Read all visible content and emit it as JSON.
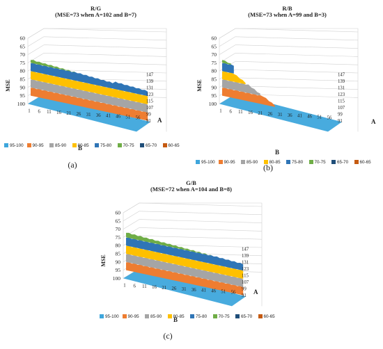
{
  "panels": [
    {
      "title_line1": "R/G",
      "title_line2": "(MSE=73 when A=102 and B=7)",
      "caption": "(a)",
      "profile": "rg",
      "variant": 0
    },
    {
      "title_line1": "R/B",
      "title_line2": "(MSE=73 when A=99 and B=3)",
      "caption": "(b)",
      "profile": "rb",
      "variant": 1
    },
    {
      "title_line1": "G/B",
      "title_line2": "(MSE=72 when A=104 and B=8)",
      "caption": "(c)",
      "profile": "gb",
      "variant": 2
    }
  ],
  "legend": [
    {
      "label": "95-100",
      "color": "#3ea6dc"
    },
    {
      "label": "90-95",
      "color": "#ee7d31"
    },
    {
      "label": "85-90",
      "color": "#a5a5a5"
    },
    {
      "label": "80-85",
      "color": "#fec000"
    },
    {
      "label": "75-80",
      "color": "#2f75b6"
    },
    {
      "label": "70-75",
      "color": "#6fad46"
    },
    {
      "label": "65-70",
      "color": "#1f4e79"
    },
    {
      "label": "60-65",
      "color": "#c55a11"
    }
  ],
  "chart_data": [
    {
      "type": "surface",
      "title": "R/G",
      "subtitle": "(MSE=73 when A=102 and B=7)",
      "zlabel": "MSE",
      "xlabel": "B",
      "ylabel": "A",
      "z_ticks": [
        60,
        65,
        70,
        75,
        80,
        85,
        90,
        95,
        100
      ],
      "z_axis_inverted": true,
      "b_ticks": [
        1,
        6,
        11,
        16,
        21,
        26,
        31,
        36,
        41,
        46,
        51,
        56
      ],
      "a_ticks": [
        91,
        99,
        107,
        115,
        123,
        131,
        139,
        147
      ],
      "minimum": {
        "MSE": 73,
        "A": 102,
        "B": 7
      },
      "bands": [
        "95-100",
        "90-95",
        "85-90",
        "80-85",
        "75-80",
        "70-75",
        "65-70",
        "60-65"
      ]
    },
    {
      "type": "surface",
      "title": "R/B",
      "subtitle": "(MSE=73 when A=99 and B=3)",
      "zlabel": "MSE",
      "xlabel": "B",
      "ylabel": "A",
      "z_ticks": [
        60,
        65,
        70,
        75,
        80,
        85,
        90,
        95,
        100
      ],
      "z_axis_inverted": true,
      "b_ticks": [
        1,
        6,
        11,
        16,
        21,
        26,
        31,
        36,
        41,
        46,
        51,
        56
      ],
      "a_ticks": [
        91,
        99,
        107,
        115,
        123,
        131,
        139,
        147
      ],
      "minimum": {
        "MSE": 73,
        "A": 99,
        "B": 3
      },
      "bands": [
        "95-100",
        "90-95",
        "85-90",
        "80-85",
        "75-80",
        "70-75",
        "65-70",
        "60-65"
      ]
    },
    {
      "type": "surface",
      "title": "G/B",
      "subtitle": "(MSE=72 when A=104 and B=8)",
      "zlabel": "MSE",
      "xlabel": "B",
      "ylabel": "A",
      "z_ticks": [
        60,
        65,
        70,
        75,
        80,
        85,
        90,
        95,
        100
      ],
      "z_axis_inverted": true,
      "b_ticks": [
        1,
        6,
        11,
        16,
        21,
        26,
        31,
        36,
        41,
        46,
        51,
        56
      ],
      "a_ticks": [
        91,
        99,
        107,
        115,
        123,
        131,
        139,
        147
      ],
      "minimum": {
        "MSE": 72,
        "A": 104,
        "B": 8
      },
      "bands": [
        "95-100",
        "90-95",
        "85-90",
        "80-85",
        "75-80",
        "70-75",
        "65-70",
        "60-65"
      ]
    }
  ]
}
